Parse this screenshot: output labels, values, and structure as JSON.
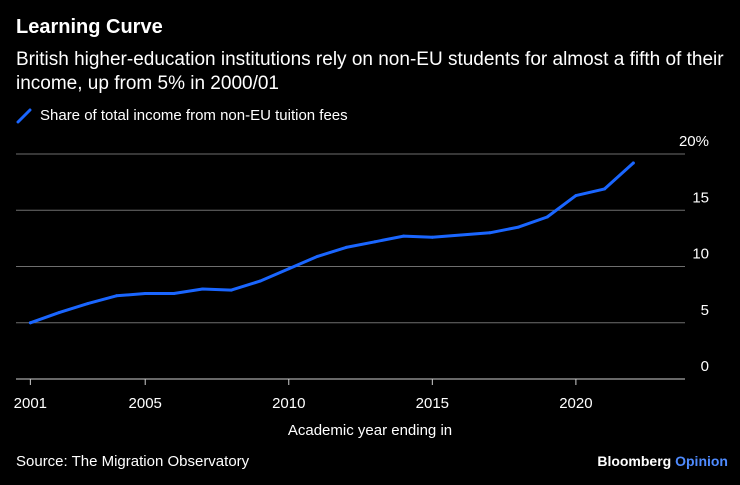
{
  "colors": {
    "background": "#000000",
    "line": "#1a66ff",
    "grid": "#6e6e6e",
    "text": "#ffffff",
    "brand_accent": "#4f8bff"
  },
  "legend_icon": "diagonal-line-icon",
  "chart_data": {
    "type": "line",
    "title": "Learning Curve",
    "subtitle": "British higher-education institutions rely on non-EU students for almost a fifth of their income, up from 5% in 2000/01",
    "xlabel": "Academic year ending in",
    "ylabel": "",
    "xlim": [
      2000.5,
      2023.8
    ],
    "ylim": [
      0,
      20
    ],
    "x_ticks": [
      2001,
      2005,
      2010,
      2015,
      2020
    ],
    "x_tick_labels": [
      "2001",
      "2005",
      "2010",
      "2015",
      "2020"
    ],
    "y_ticks": [
      0,
      5,
      10,
      15,
      20
    ],
    "y_tick_labels": [
      "0",
      "5",
      "10",
      "15",
      "20%"
    ],
    "grid": true,
    "legend": "top-left",
    "series": [
      {
        "name": "Share of total income from non-EU tuition fees",
        "x": [
          2001,
          2002,
          2003,
          2004,
          2005,
          2006,
          2007,
          2008,
          2009,
          2010,
          2011,
          2012,
          2013,
          2014,
          2015,
          2016,
          2017,
          2018,
          2019,
          2020,
          2021,
          2022
        ],
        "values": [
          5.0,
          5.9,
          6.7,
          7.4,
          7.6,
          7.6,
          8.0,
          7.9,
          8.7,
          9.8,
          10.9,
          11.7,
          12.2,
          12.7,
          12.6,
          12.8,
          13.0,
          13.5,
          14.4,
          16.3,
          16.9,
          19.2
        ]
      }
    ]
  },
  "footer": {
    "source": "Source: The Migration Observatory",
    "brand_primary": "Bloomberg",
    "brand_secondary": "Opinion"
  }
}
